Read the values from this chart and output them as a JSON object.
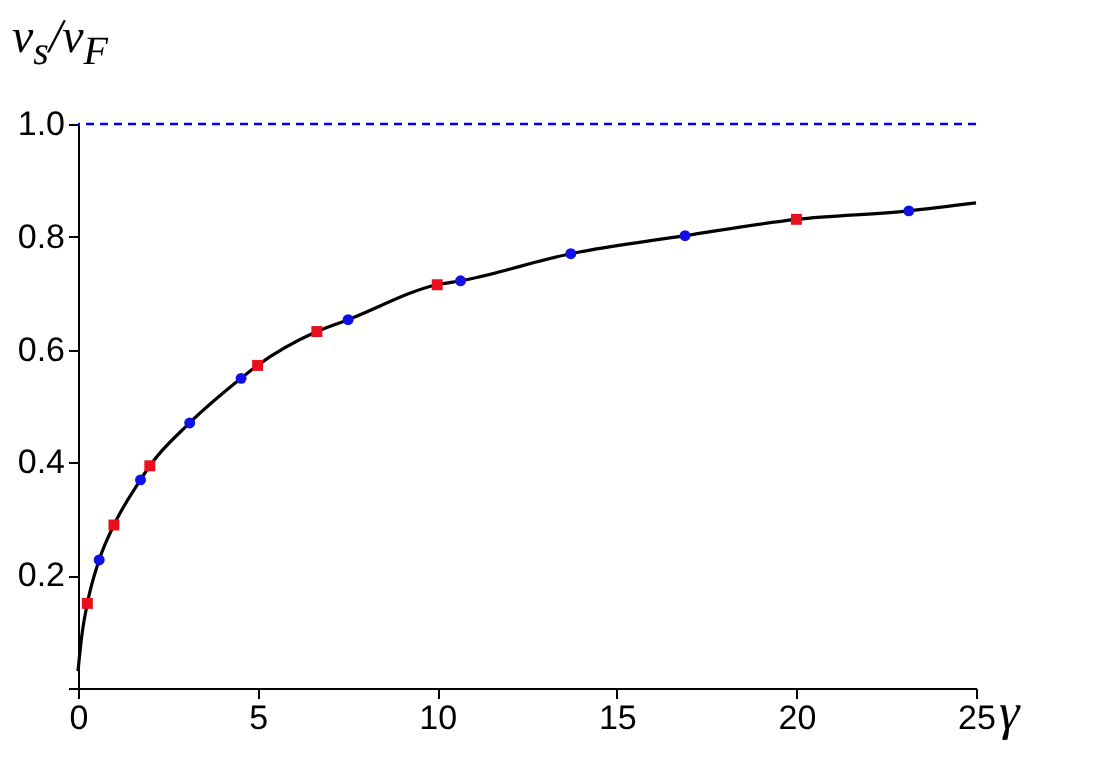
{
  "chart_data": {
    "type": "scatter",
    "xlabel": "γ",
    "ylabel": "v$_{s}$/v$_{F}$",
    "xlim": [
      0,
      25
    ],
    "xticks": [
      0,
      5,
      10,
      15,
      20,
      25
    ],
    "ylim": [
      0,
      1
    ],
    "yticks": [
      {
        "value": 0,
        "label": null
      },
      0.2,
      0.4,
      0.6,
      0.8,
      {
        "value": 1,
        "label": "1.0"
      }
    ],
    "grid": false,
    "ref_lines": [
      {
        "axis": "y",
        "value": 1.0,
        "color": "#0000ff",
        "line_style": "dashed"
      }
    ],
    "series": [
      {
        "type": "line",
        "color": "#000000",
        "marker": "none",
        "line_style": "solid",
        "x": [
          0,
          0.1,
          0.26,
          0.59,
          1,
          1.74,
          2,
          3.11,
          4.54,
          5,
          6.65,
          7.52,
          10,
          10.65,
          13.72,
          16.9,
          20,
          23.13,
          25
        ],
        "values": [
          0.03,
          0.09,
          0.15,
          0.227,
          0.289,
          0.369,
          0.394,
          0.47,
          0.549,
          0.572,
          0.632,
          0.653,
          0.715,
          0.722,
          0.77,
          0.802,
          0.831,
          0.846,
          0.86
        ]
      },
      {
        "color": "#e8101c",
        "marker": "square",
        "x": [
          0.26,
          1.0,
          2.0,
          5.0,
          6.65,
          10.0,
          20.0
        ],
        "values": [
          0.15,
          0.289,
          0.394,
          0.572,
          0.632,
          0.715,
          0.831
        ]
      },
      {
        "color": "#1010e8",
        "marker": "circle",
        "x": [
          0.59,
          1.74,
          3.11,
          4.54,
          7.52,
          10.65,
          13.72,
          16.9,
          23.13
        ],
        "values": [
          0.227,
          0.369,
          0.47,
          0.549,
          0.653,
          0.722,
          0.77,
          0.802,
          0.846
        ]
      }
    ]
  }
}
